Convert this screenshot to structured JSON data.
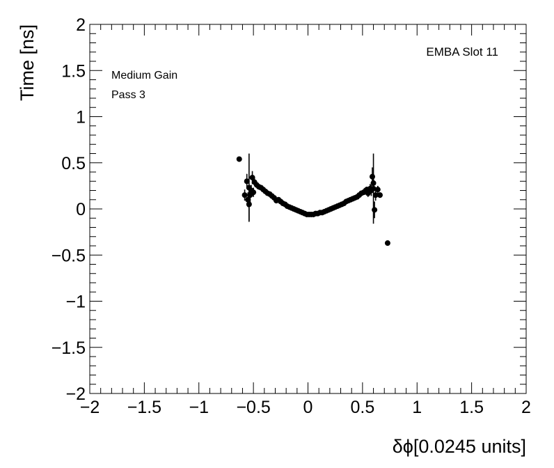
{
  "chart_data": {
    "type": "scatter",
    "title": "",
    "xlabel": "δϕ[0.0245 units]",
    "ylabel": "Time [ns]",
    "xlim": [
      -2,
      2
    ],
    "ylim": [
      -2,
      2
    ],
    "x_ticks": [
      "−2",
      "−1.5",
      "−1",
      "−0.5",
      "0",
      "0.5",
      "1",
      "1.5",
      "2"
    ],
    "y_ticks": [
      "2",
      "1.5",
      "1",
      "0.5",
      "0",
      "−0.5",
      "−1",
      "−1.5",
      "−2"
    ],
    "x_tick_values": [
      -2,
      -1.5,
      -1,
      -0.5,
      0,
      0.5,
      1,
      1.5,
      2
    ],
    "y_tick_values": [
      2,
      1.5,
      1,
      0.5,
      0,
      -0.5,
      -1,
      -1.5,
      -2
    ],
    "annotations": {
      "module": "EMBA Slot 11",
      "gain": "Medium Gain",
      "pass": "Pass 3"
    },
    "grid": false,
    "marker_color": "#000000",
    "points": [
      {
        "x": -0.63,
        "y": 0.54,
        "err": 0.0
      },
      {
        "x": -0.58,
        "y": 0.15,
        "err": 0.06
      },
      {
        "x": -0.56,
        "y": 0.3,
        "err": 0.08
      },
      {
        "x": -0.55,
        "y": 0.1,
        "err": 0.08
      },
      {
        "x": -0.54,
        "y": 0.05,
        "err": 0.18
      },
      {
        "x": -0.54,
        "y": 0.23,
        "err": 0.37
      },
      {
        "x": -0.53,
        "y": 0.15,
        "err": 0.1
      },
      {
        "x": -0.52,
        "y": 0.2,
        "err": 0.06
      },
      {
        "x": -0.51,
        "y": 0.34,
        "err": 0.07
      },
      {
        "x": -0.5,
        "y": 0.18,
        "err": 0.05
      },
      {
        "x": -0.49,
        "y": 0.29,
        "err": 0.04
      },
      {
        "x": -0.47,
        "y": 0.26,
        "err": 0.03
      },
      {
        "x": -0.45,
        "y": 0.24,
        "err": 0.03
      },
      {
        "x": -0.43,
        "y": 0.23,
        "err": 0.02
      },
      {
        "x": -0.41,
        "y": 0.21,
        "err": 0.02
      },
      {
        "x": -0.39,
        "y": 0.19,
        "err": 0.02
      },
      {
        "x": -0.37,
        "y": 0.17,
        "err": 0.02
      },
      {
        "x": -0.35,
        "y": 0.16,
        "err": 0.015
      },
      {
        "x": -0.33,
        "y": 0.14,
        "err": 0.015
      },
      {
        "x": -0.31,
        "y": 0.12,
        "err": 0.015
      },
      {
        "x": -0.29,
        "y": 0.09,
        "err": 0.01
      },
      {
        "x": -0.27,
        "y": 0.1,
        "err": 0.01
      },
      {
        "x": -0.25,
        "y": 0.08,
        "err": 0.01
      },
      {
        "x": -0.23,
        "y": 0.06,
        "err": 0.01
      },
      {
        "x": -0.21,
        "y": 0.05,
        "err": 0.01
      },
      {
        "x": -0.19,
        "y": 0.03,
        "err": 0.01
      },
      {
        "x": -0.17,
        "y": 0.02,
        "err": 0.01
      },
      {
        "x": -0.15,
        "y": 0.01,
        "err": 0.01
      },
      {
        "x": -0.13,
        "y": 0.0,
        "err": 0.01
      },
      {
        "x": -0.11,
        "y": -0.01,
        "err": 0.01
      },
      {
        "x": -0.09,
        "y": -0.02,
        "err": 0.01
      },
      {
        "x": -0.07,
        "y": -0.03,
        "err": 0.01
      },
      {
        "x": -0.05,
        "y": -0.04,
        "err": 0.01
      },
      {
        "x": -0.03,
        "y": -0.05,
        "err": 0.01
      },
      {
        "x": -0.01,
        "y": -0.06,
        "err": 0.01
      },
      {
        "x": 0.01,
        "y": -0.06,
        "err": 0.01
      },
      {
        "x": 0.03,
        "y": -0.06,
        "err": 0.01
      },
      {
        "x": 0.05,
        "y": -0.06,
        "err": 0.01
      },
      {
        "x": 0.07,
        "y": -0.05,
        "err": 0.01
      },
      {
        "x": 0.09,
        "y": -0.05,
        "err": 0.01
      },
      {
        "x": 0.11,
        "y": -0.04,
        "err": 0.01
      },
      {
        "x": 0.13,
        "y": -0.04,
        "err": 0.01
      },
      {
        "x": 0.15,
        "y": -0.03,
        "err": 0.01
      },
      {
        "x": 0.17,
        "y": -0.02,
        "err": 0.01
      },
      {
        "x": 0.19,
        "y": -0.01,
        "err": 0.01
      },
      {
        "x": 0.21,
        "y": 0.0,
        "err": 0.01
      },
      {
        "x": 0.23,
        "y": 0.01,
        "err": 0.01
      },
      {
        "x": 0.25,
        "y": 0.02,
        "err": 0.01
      },
      {
        "x": 0.27,
        "y": 0.03,
        "err": 0.01
      },
      {
        "x": 0.29,
        "y": 0.04,
        "err": 0.01
      },
      {
        "x": 0.31,
        "y": 0.05,
        "err": 0.01
      },
      {
        "x": 0.33,
        "y": 0.06,
        "err": 0.01
      },
      {
        "x": 0.35,
        "y": 0.08,
        "err": 0.01
      },
      {
        "x": 0.37,
        "y": 0.09,
        "err": 0.01
      },
      {
        "x": 0.39,
        "y": 0.1,
        "err": 0.01
      },
      {
        "x": 0.41,
        "y": 0.11,
        "err": 0.015
      },
      {
        "x": 0.43,
        "y": 0.12,
        "err": 0.015
      },
      {
        "x": 0.45,
        "y": 0.13,
        "err": 0.015
      },
      {
        "x": 0.47,
        "y": 0.15,
        "err": 0.02
      },
      {
        "x": 0.49,
        "y": 0.17,
        "err": 0.02
      },
      {
        "x": 0.51,
        "y": 0.18,
        "err": 0.02
      },
      {
        "x": 0.53,
        "y": 0.2,
        "err": 0.03
      },
      {
        "x": 0.54,
        "y": 0.21,
        "err": 0.03
      },
      {
        "x": 0.55,
        "y": 0.17,
        "err": 0.04
      },
      {
        "x": 0.56,
        "y": 0.19,
        "err": 0.05
      },
      {
        "x": 0.57,
        "y": 0.22,
        "err": 0.05
      },
      {
        "x": 0.58,
        "y": 0.2,
        "err": 0.06
      },
      {
        "x": 0.59,
        "y": 0.35,
        "err": 0.1
      },
      {
        "x": 0.6,
        "y": 0.28,
        "err": 0.08
      },
      {
        "x": 0.6,
        "y": 0.22,
        "err": 0.38
      },
      {
        "x": 0.61,
        "y": -0.01,
        "err": 0.09
      },
      {
        "x": 0.62,
        "y": 0.15,
        "err": 0.06
      },
      {
        "x": 0.64,
        "y": 0.21,
        "err": 0.04
      },
      {
        "x": 0.66,
        "y": 0.15,
        "err": 0.03
      },
      {
        "x": 0.73,
        "y": -0.37,
        "err": 0.0
      }
    ]
  }
}
